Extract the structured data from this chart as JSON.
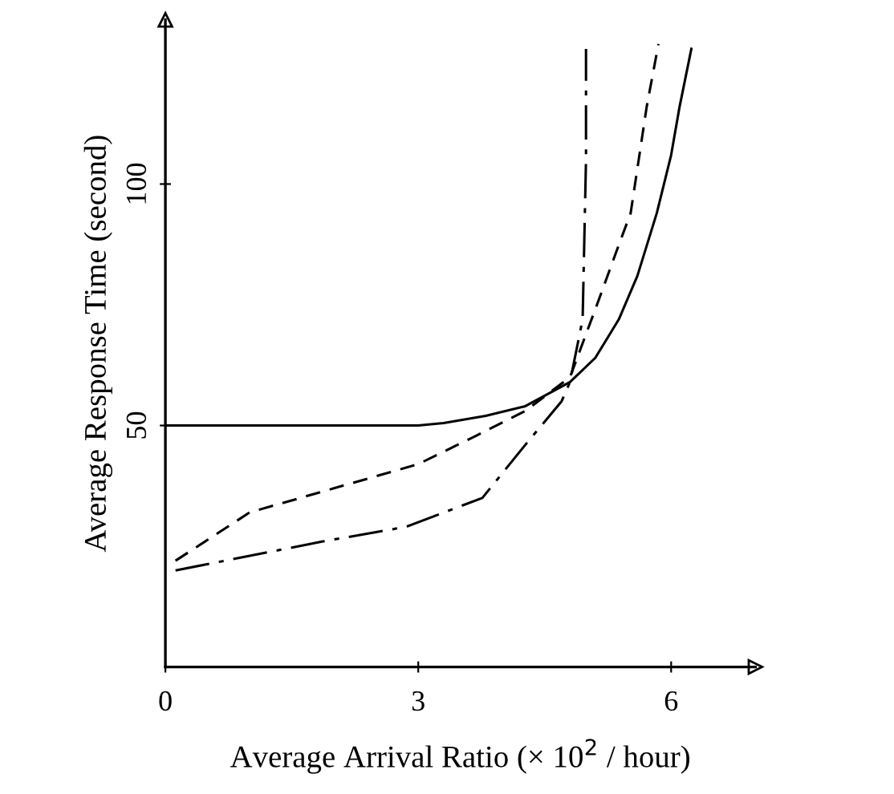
{
  "chart_data": {
    "type": "line",
    "xlabel": "Average Arrival Ratio (× 10$^{2}$ / hour)",
    "ylabel": "Average Response Time (second)",
    "xlim": [
      0,
      7
    ],
    "ylim": [
      0,
      134
    ],
    "xticks": [
      0,
      3,
      6
    ],
    "yticks": [
      50,
      100
    ],
    "grid": false,
    "legend": false,
    "marker": "none",
    "series": [
      {
        "color": "#000000",
        "line_style": "solid",
        "x": [
          0,
          1,
          2,
          3,
          3.3,
          3.8,
          4.27,
          4.8,
          5.1,
          5.38,
          5.6,
          5.83,
          6.0,
          6.1,
          6.24
        ],
        "values": [
          50,
          50,
          50,
          50,
          50.5,
          52,
          54,
          59,
          64,
          72,
          81,
          94,
          106,
          116,
          128
        ]
      },
      {
        "color": "#000000",
        "line_style": "dashed",
        "x": [
          0.12,
          1,
          2,
          3,
          3.7,
          4.27,
          4.8,
          5.12,
          5.35,
          5.52,
          5.71,
          5.85
        ],
        "values": [
          22,
          32,
          37,
          42,
          48,
          53,
          60,
          75,
          86,
          94,
          116,
          129
        ]
      },
      {
        "color": "#000000",
        "line_style": "dashdot",
        "x": [
          0.12,
          1,
          1.87,
          2.85,
          3.76,
          4.27,
          4.7,
          4.8,
          4.95,
          4.99,
          4.99
        ],
        "values": [
          20,
          23,
          26,
          29,
          35,
          46,
          55,
          59,
          72,
          105,
          128
        ]
      }
    ]
  }
}
